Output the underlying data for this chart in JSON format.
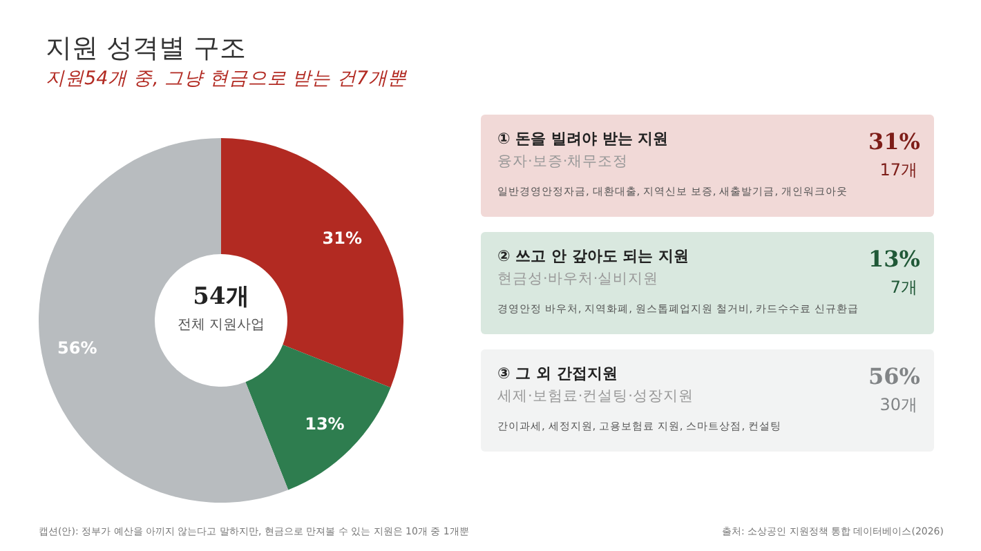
{
  "chart_data": {
    "type": "donut",
    "title": "지원 성격별 구조",
    "subtitle": "지원54개 중, 그냥 현금으로 받는 건7개뿐",
    "categories": [
      null,
      null,
      null
    ],
    "values": [
      31,
      13,
      56
    ],
    "colors": [
      "#b22a22",
      "#2e7d4f",
      "#b8bcbf"
    ],
    "value_labels": [
      "31%",
      "13%",
      "56%"
    ],
    "annotations": [
      "54개",
      "전체 지원사업",
      "① 돈을 빌려야 받는 지원",
      "융자·보증·채무조정",
      "일반경영안정자금, 대환대출, 지역신보 보증, 새출발기금, 개인워크아웃",
      "31%",
      "17개",
      "② 쓰고 안 갚아도 되는 지원",
      "현금성·바우처·실비지원",
      "경영안정 바우처, 지역화폐, 원스톱폐업지원 철거비, 카드수수료 신규환급",
      "13%",
      "7개",
      "③ 그 외 간접지원",
      "세제·보험료·컨설팅·성장지원",
      "간이과세, 세정지원, 고용보험료 지원, 스마트상점, 컨설팅",
      "56%",
      "30개",
      "캡션(안): 정부가 예산을 아끼지 않는다고 말하지만, 현금으로 만져볼 수 있는 지원은 10개 중 1개뿐",
      "출처: 소상공인 지원정책 통합 데이터베이스(2026)"
    ]
  }
}
